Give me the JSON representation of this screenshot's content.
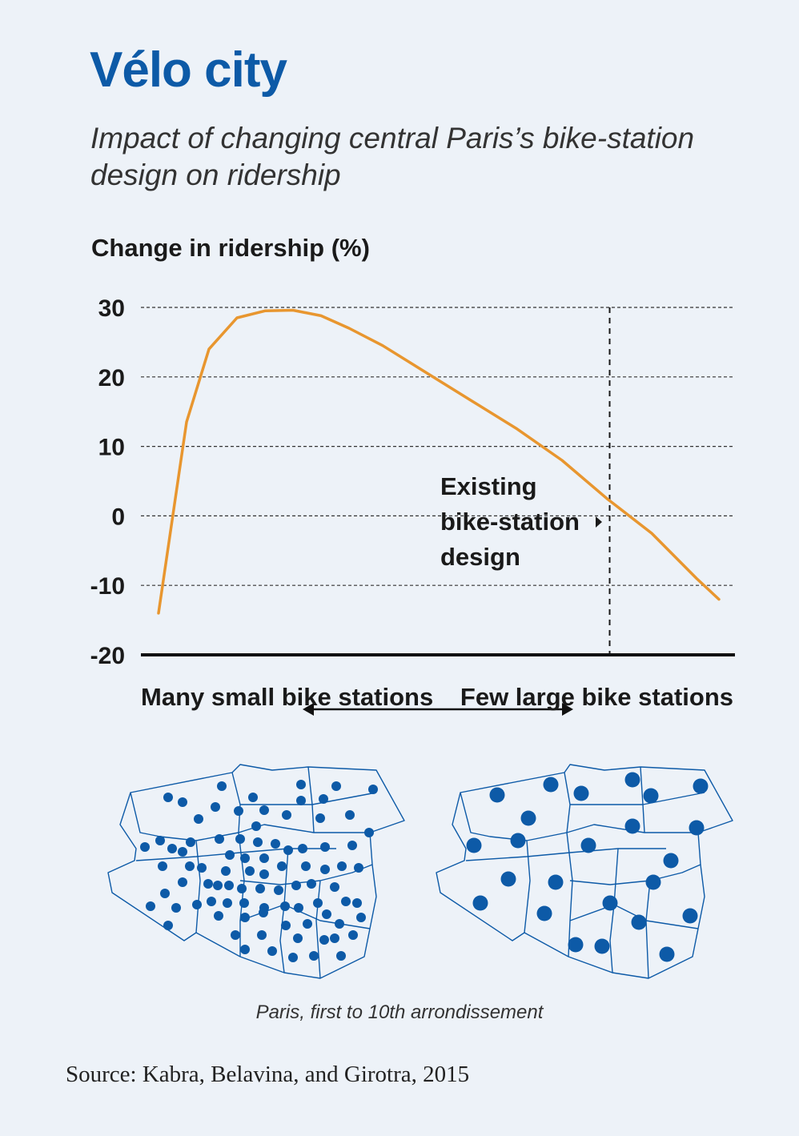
{
  "title": "Vélo city",
  "subtitle": "Impact of changing central Paris’s bike-station design on ridership",
  "chart_data": {
    "type": "line",
    "ylabel": "Change in ridership (%)",
    "ylim": [
      -20,
      30
    ],
    "yticks": [
      "30",
      "20",
      "10",
      "0",
      "-10",
      "-20"
    ],
    "ytick_values": [
      30,
      20,
      10,
      0,
      -10,
      -20
    ],
    "x_left_label": "Many small bike stations",
    "x_right_label": "Few large bike stations",
    "grid": true,
    "series": [
      {
        "color": "#e8962f",
        "x": [
          0,
          5,
          9,
          14,
          19,
          24,
          29,
          34,
          40,
          48,
          56,
          64,
          72,
          80,
          88,
          96,
          100
        ],
        "values": [
          -14,
          13.5,
          24,
          28.5,
          29.5,
          29.6,
          28.8,
          27,
          24.5,
          20.5,
          16.5,
          12.5,
          8,
          2.5,
          -2.5,
          -9,
          -12
        ]
      }
    ],
    "marker_x": 80.5,
    "annotation": [
      "Existing",
      "bike-station",
      "design"
    ]
  },
  "maps": {
    "caption": "Paris, first to 10th arrondissement",
    "dot_color": "#0d5aa7",
    "line_color": "#0d5aa7"
  },
  "source": "Source: Kabra, Belavina, and Girotra, 2015"
}
